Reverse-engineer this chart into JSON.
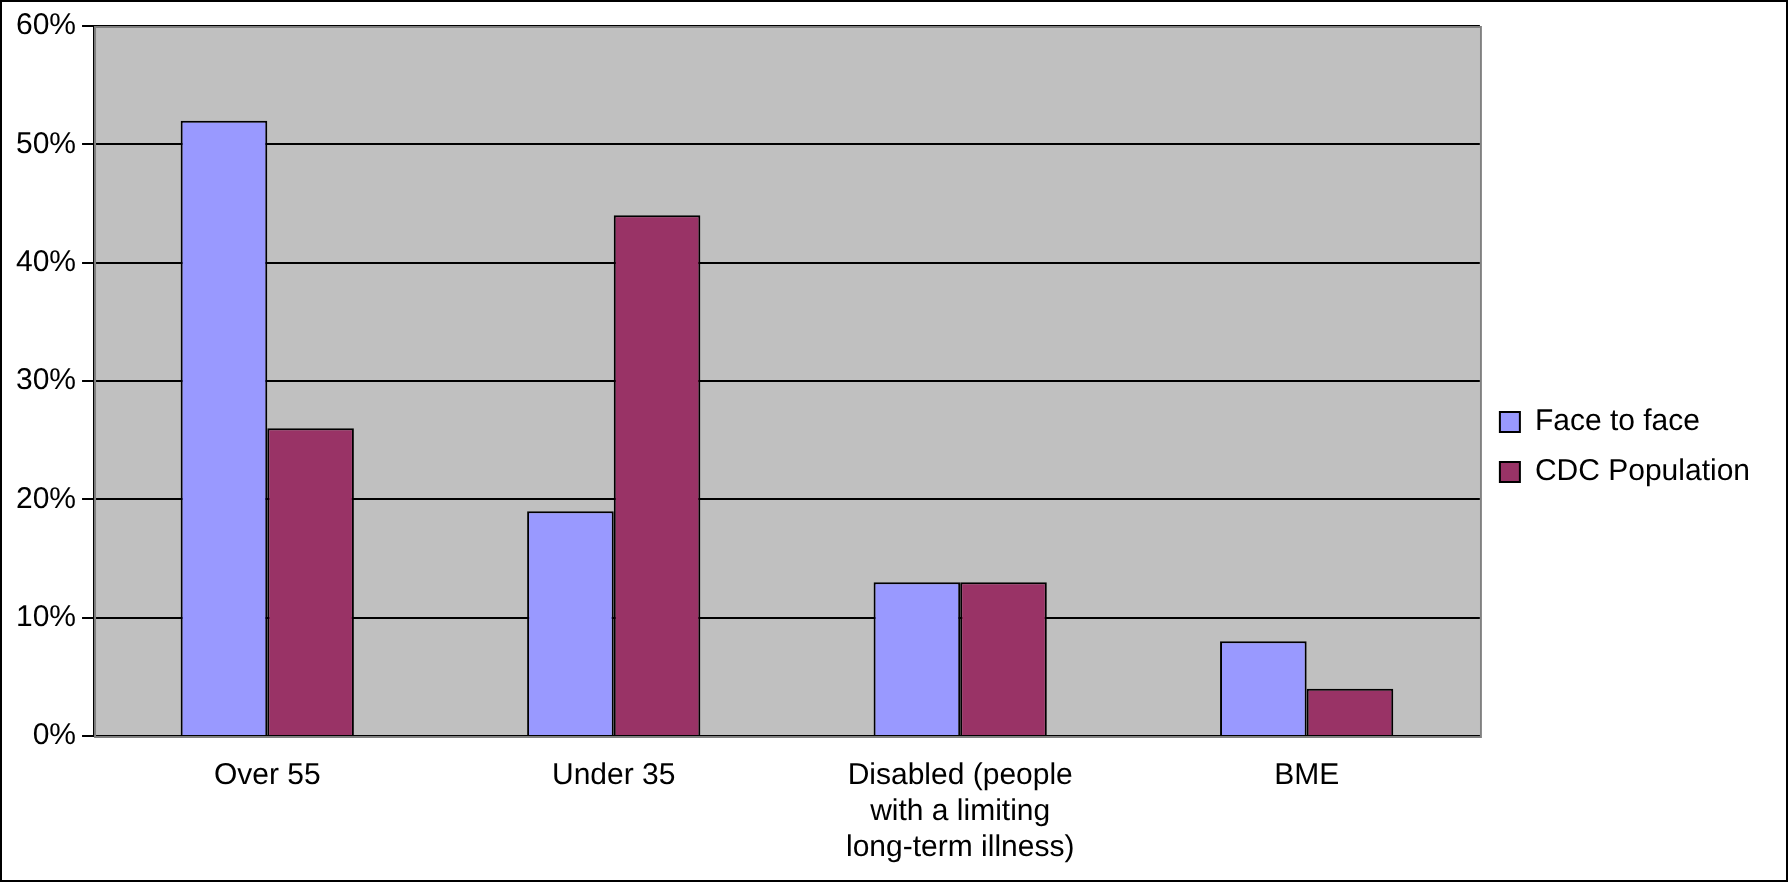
{
  "chart_data": {
    "type": "bar",
    "categories": [
      "Over 55",
      "Under 35",
      "Disabled (people with a limiting long-term illness)",
      "BME"
    ],
    "series": [
      {
        "name": "Face to face",
        "color": "#9999ff",
        "values": [
          52,
          19,
          13,
          8
        ]
      },
      {
        "name": "CDC Population",
        "color": "#993366",
        "values": [
          26,
          44,
          13,
          4
        ]
      }
    ],
    "ylim": [
      0,
      60
    ],
    "yticks": [
      {
        "value": 0,
        "label": "0%"
      },
      {
        "value": 10,
        "label": "10%"
      },
      {
        "value": 20,
        "label": "20%"
      },
      {
        "value": 30,
        "label": "30%"
      },
      {
        "value": 40,
        "label": "40%"
      },
      {
        "value": 50,
        "label": "50%"
      },
      {
        "value": 60,
        "label": "60%"
      }
    ],
    "grid": "y",
    "legend": "right"
  }
}
